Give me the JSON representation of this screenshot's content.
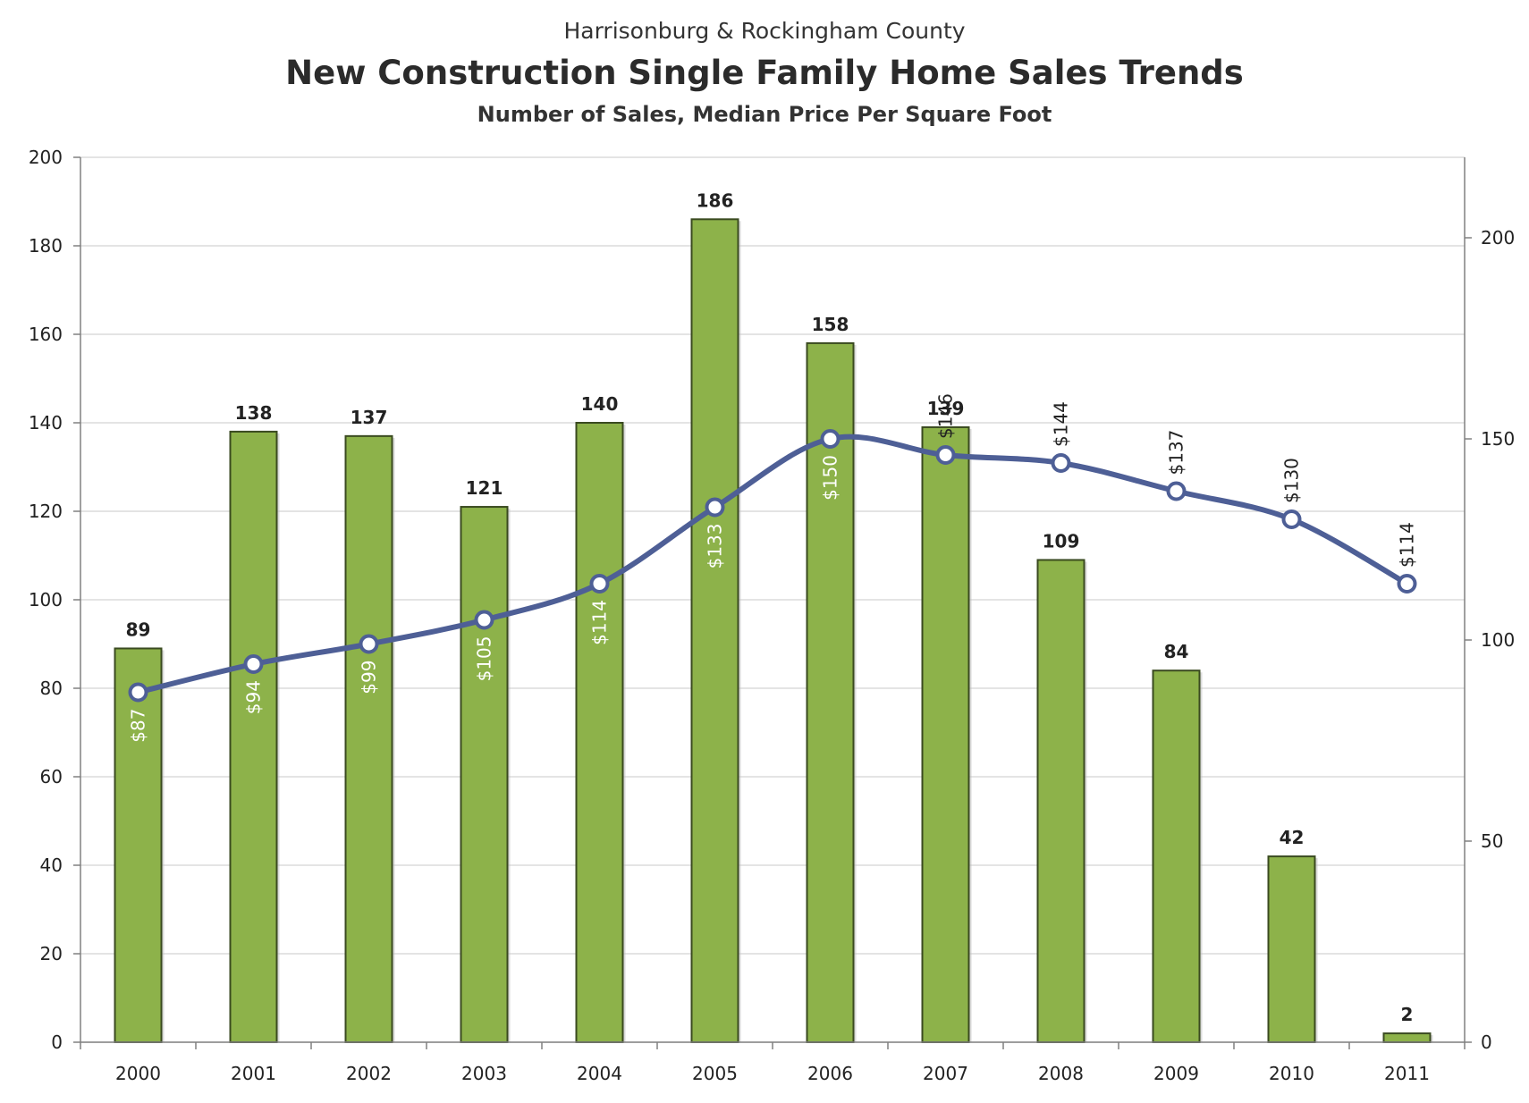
{
  "header": {
    "supertitle": "Harrisonburg & Rockingham County",
    "title": "New Construction Single Family Home Sales Trends",
    "subtitle": "Number of Sales, Median Price Per Square Foot"
  },
  "chart_data": {
    "type": "bar",
    "categories": [
      "2000",
      "2001",
      "2002",
      "2003",
      "2004",
      "2005",
      "2006",
      "2007",
      "2008",
      "2009",
      "2010",
      "2011"
    ],
    "series": [
      {
        "type": "bar",
        "axis": "left",
        "values": [
          89,
          138,
          137,
          121,
          140,
          186,
          158,
          139,
          109,
          84,
          42,
          2
        ],
        "data_labels": [
          "89",
          "138",
          "137",
          "121",
          "140",
          "186",
          "158",
          "139",
          "109",
          "84",
          "42",
          "2"
        ],
        "color": "#8db24a"
      },
      {
        "type": "line",
        "axis": "right",
        "values": [
          87,
          94,
          99,
          105,
          114,
          133,
          150,
          146,
          144,
          137,
          130,
          114
        ],
        "data_labels": [
          "$87",
          "$94",
          "$99",
          "$105",
          "$114",
          "$133",
          "$150",
          "$146",
          "$144",
          "$137",
          "$130",
          "$114"
        ],
        "color": "#4e5f96"
      }
    ],
    "y_left": {
      "range": [
        0,
        200
      ],
      "ticks": [
        "0",
        "20",
        "40",
        "60",
        "80",
        "100",
        "120",
        "140",
        "160",
        "180",
        "200"
      ]
    },
    "y_right": {
      "range": [
        0,
        220
      ],
      "ticks": [
        "0",
        "50",
        "100",
        "150",
        "200"
      ]
    },
    "grid": true,
    "legend": "none"
  }
}
